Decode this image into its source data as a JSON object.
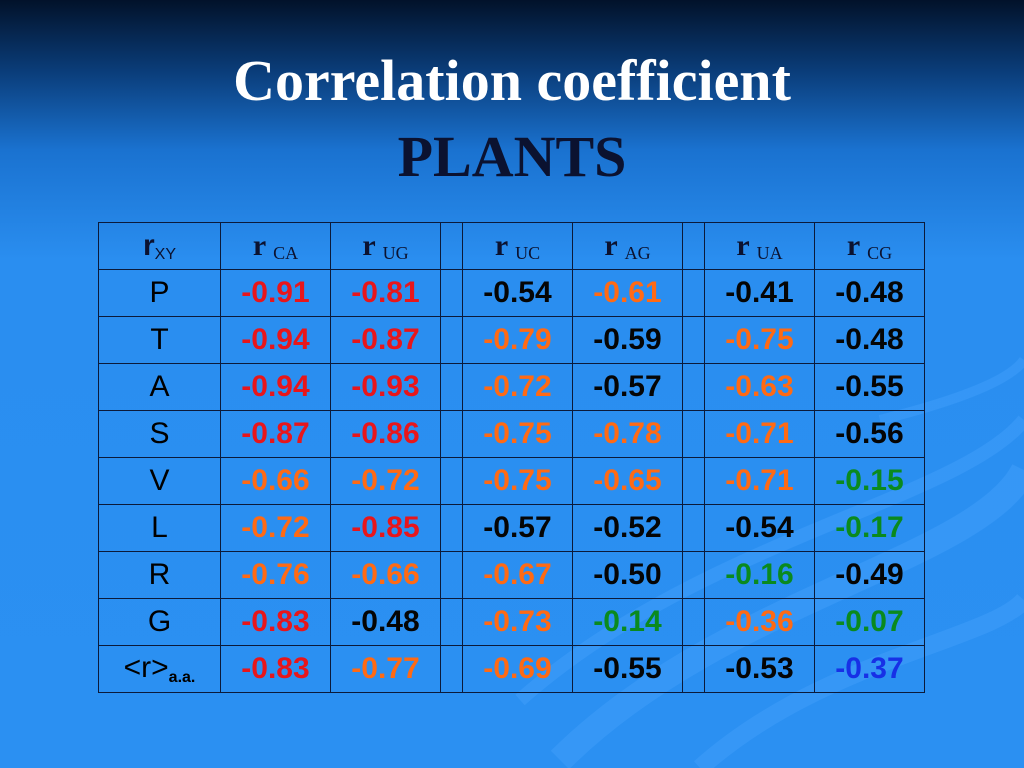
{
  "title": {
    "line1": "Correlation coefficient",
    "line2": "PLANTS"
  },
  "colors": {
    "red": "#e8161b",
    "orange": "#ff6a14",
    "black": "#050505",
    "green": "#0a8a1e",
    "blue": "#1730e6"
  },
  "table": {
    "header": {
      "rxy_main": "r",
      "rxy_sub": "XY",
      "columns": [
        {
          "main": "r",
          "sub": "CA"
        },
        {
          "main": "r",
          "sub": "UG"
        },
        {
          "main": "r",
          "sub": "UC"
        },
        {
          "main": "r",
          "sub": "AG"
        },
        {
          "main": "r",
          "sub": "UA"
        },
        {
          "main": "r",
          "sub": "CG"
        }
      ]
    },
    "rows": [
      {
        "label": "P",
        "cells": [
          {
            "v": "-0.91",
            "c": "red"
          },
          {
            "v": "-0.81",
            "c": "red"
          },
          {
            "v": "-0.54",
            "c": "black"
          },
          {
            "v": "-0.61",
            "c": "orange"
          },
          {
            "v": "-0.41",
            "c": "black"
          },
          {
            "v": "-0.48",
            "c": "black"
          }
        ]
      },
      {
        "label": "T",
        "cells": [
          {
            "v": "-0.94",
            "c": "red"
          },
          {
            "v": "-0.87",
            "c": "red"
          },
          {
            "v": "-0.79",
            "c": "orange"
          },
          {
            "v": "-0.59",
            "c": "black"
          },
          {
            "v": "-0.75",
            "c": "orange"
          },
          {
            "v": "-0.48",
            "c": "black"
          }
        ]
      },
      {
        "label": "A",
        "cells": [
          {
            "v": "-0.94",
            "c": "red"
          },
          {
            "v": "-0.93",
            "c": "red"
          },
          {
            "v": "-0.72",
            "c": "orange"
          },
          {
            "v": "-0.57",
            "c": "black"
          },
          {
            "v": "-0.63",
            "c": "orange"
          },
          {
            "v": "-0.55",
            "c": "black"
          }
        ]
      },
      {
        "label": "S",
        "cells": [
          {
            "v": "-0.87",
            "c": "red"
          },
          {
            "v": "-0.86",
            "c": "red"
          },
          {
            "v": "-0.75",
            "c": "orange"
          },
          {
            "v": "-0.78",
            "c": "orange"
          },
          {
            "v": "-0.71",
            "c": "orange"
          },
          {
            "v": "-0.56",
            "c": "black"
          }
        ]
      },
      {
        "label": "V",
        "cells": [
          {
            "v": "-0.66",
            "c": "orange"
          },
          {
            "v": "-0.72",
            "c": "orange"
          },
          {
            "v": "-0.75",
            "c": "orange"
          },
          {
            "v": "-0.65",
            "c": "orange"
          },
          {
            "v": "-0.71",
            "c": "orange"
          },
          {
            "v": "-0.15",
            "c": "green"
          }
        ]
      },
      {
        "label": "L",
        "cells": [
          {
            "v": "-0.72",
            "c": "orange"
          },
          {
            "v": "-0.85",
            "c": "red"
          },
          {
            "v": "-0.57",
            "c": "black"
          },
          {
            "v": "-0.52",
            "c": "black"
          },
          {
            "v": "-0.54",
            "c": "black"
          },
          {
            "v": "-0.17",
            "c": "green"
          }
        ]
      },
      {
        "label": "R",
        "cells": [
          {
            "v": "-0.76",
            "c": "orange"
          },
          {
            "v": "-0.66",
            "c": "orange"
          },
          {
            "v": "-0.67",
            "c": "orange"
          },
          {
            "v": "-0.50",
            "c": "black"
          },
          {
            "v": "-0.16",
            "c": "green"
          },
          {
            "v": "-0.49",
            "c": "black"
          }
        ]
      },
      {
        "label": "G",
        "cells": [
          {
            "v": "-0.83",
            "c": "red"
          },
          {
            "v": "-0.48",
            "c": "black"
          },
          {
            "v": "-0.73",
            "c": "orange"
          },
          {
            "v": "-0.14",
            "c": "green"
          },
          {
            "v": "-0.36",
            "c": "orange"
          },
          {
            "v": "-0.07",
            "c": "green"
          }
        ]
      },
      {
        "label": "<r>",
        "label_sub": "a.a.",
        "cells": [
          {
            "v": "-0.83",
            "c": "red"
          },
          {
            "v": "-0.77",
            "c": "orange"
          },
          {
            "v": "-0.69",
            "c": "orange"
          },
          {
            "v": "-0.55",
            "c": "black"
          },
          {
            "v": "-0.53",
            "c": "black"
          },
          {
            "v": "-0.37",
            "c": "blue"
          }
        ]
      }
    ]
  }
}
